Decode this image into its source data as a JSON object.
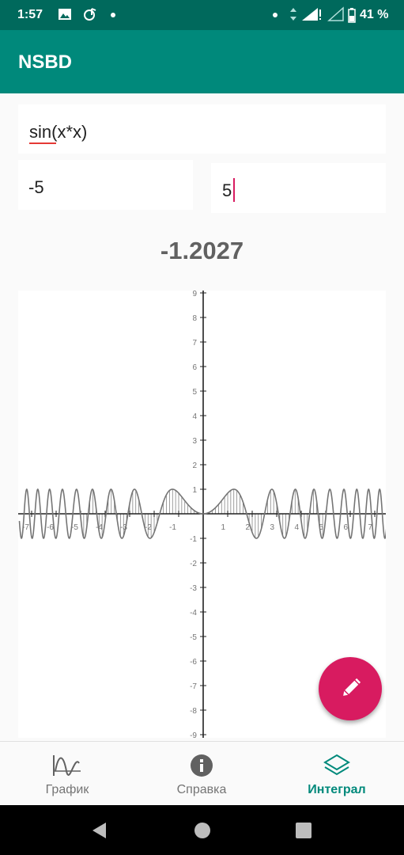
{
  "status_bar": {
    "time": "1:57",
    "battery": "41 %"
  },
  "app_bar": {
    "title": "NSBD"
  },
  "form": {
    "function_value": "sin(x*x)",
    "lower_bound": "-5",
    "upper_bound": "5"
  },
  "result": "-1.2027",
  "chart_data": {
    "type": "line",
    "function": "sin(x*x)",
    "x_ticks": [
      -7,
      -6,
      -5,
      -4,
      -3,
      -2,
      -1,
      1,
      2,
      3,
      4,
      5,
      6,
      7
    ],
    "y_ticks": [
      9,
      8,
      7,
      6,
      5,
      4,
      3,
      2,
      1,
      -1,
      -2,
      -3,
      -4,
      -5,
      -6,
      -7,
      -8,
      -9
    ],
    "xlim": [
      -7.5,
      7.5
    ],
    "ylim": [
      -9,
      9
    ],
    "shaded_range": [
      -5,
      5
    ],
    "grid": false,
    "colors": {
      "line": "#757575",
      "axis": "#212121"
    }
  },
  "bottom_nav": {
    "items": [
      {
        "label": "График",
        "icon": "sine-wave-icon"
      },
      {
        "label": "Справка",
        "icon": "info-icon"
      },
      {
        "label": "Интеграл",
        "icon": "layers-icon"
      }
    ],
    "active_index": 2
  },
  "colors": {
    "primary": "#00897b",
    "primary_dark": "#00695c",
    "accent": "#d81b60"
  }
}
